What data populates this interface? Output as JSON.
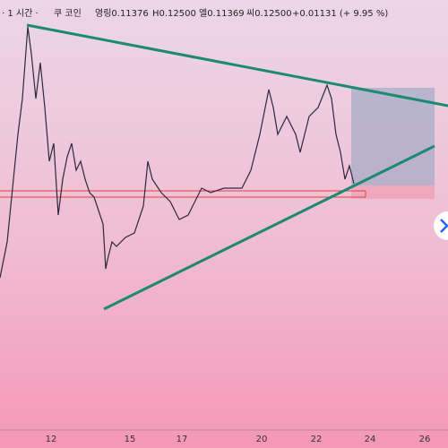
{
  "header": {
    "interval": "· 1 시간 ·",
    "symbol": "쿠 코인",
    "open": "영링0.11376",
    "high": "H0.12500",
    "low": "엘0.11369",
    "close": "씨0.12500",
    "change": "+0.01131 (+ 9.95 %)"
  },
  "x_axis": {
    "labels": [
      "12",
      "15",
      "17",
      "20",
      "22",
      "24",
      "26"
    ]
  }
}
